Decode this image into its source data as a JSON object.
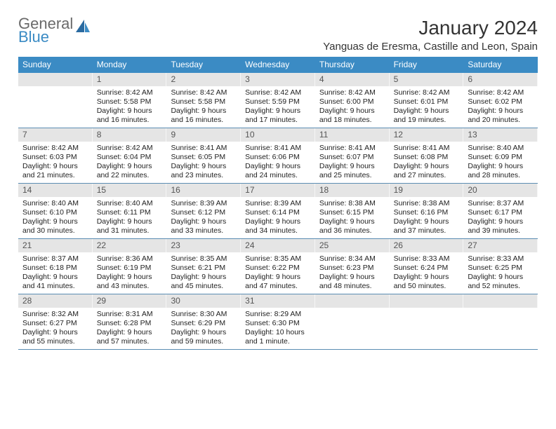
{
  "logo": {
    "line1": "General",
    "line2": "Blue"
  },
  "title": "January 2024",
  "location": "Yanguas de Eresma, Castille and Leon, Spain",
  "colors": {
    "header_bg": "#3b8bc4",
    "header_text": "#ffffff",
    "daynum_bg": "#e5e5e5",
    "border": "#5b8db3",
    "logo_gray": "#6a6a6a",
    "logo_blue": "#3b8bc4"
  },
  "weekdays": [
    "Sunday",
    "Monday",
    "Tuesday",
    "Wednesday",
    "Thursday",
    "Friday",
    "Saturday"
  ],
  "weeks": [
    [
      {
        "num": "",
        "lines": []
      },
      {
        "num": "1",
        "lines": [
          "Sunrise: 8:42 AM",
          "Sunset: 5:58 PM",
          "Daylight: 9 hours",
          "and 16 minutes."
        ]
      },
      {
        "num": "2",
        "lines": [
          "Sunrise: 8:42 AM",
          "Sunset: 5:58 PM",
          "Daylight: 9 hours",
          "and 16 minutes."
        ]
      },
      {
        "num": "3",
        "lines": [
          "Sunrise: 8:42 AM",
          "Sunset: 5:59 PM",
          "Daylight: 9 hours",
          "and 17 minutes."
        ]
      },
      {
        "num": "4",
        "lines": [
          "Sunrise: 8:42 AM",
          "Sunset: 6:00 PM",
          "Daylight: 9 hours",
          "and 18 minutes."
        ]
      },
      {
        "num": "5",
        "lines": [
          "Sunrise: 8:42 AM",
          "Sunset: 6:01 PM",
          "Daylight: 9 hours",
          "and 19 minutes."
        ]
      },
      {
        "num": "6",
        "lines": [
          "Sunrise: 8:42 AM",
          "Sunset: 6:02 PM",
          "Daylight: 9 hours",
          "and 20 minutes."
        ]
      }
    ],
    [
      {
        "num": "7",
        "lines": [
          "Sunrise: 8:42 AM",
          "Sunset: 6:03 PM",
          "Daylight: 9 hours",
          "and 21 minutes."
        ]
      },
      {
        "num": "8",
        "lines": [
          "Sunrise: 8:42 AM",
          "Sunset: 6:04 PM",
          "Daylight: 9 hours",
          "and 22 minutes."
        ]
      },
      {
        "num": "9",
        "lines": [
          "Sunrise: 8:41 AM",
          "Sunset: 6:05 PM",
          "Daylight: 9 hours",
          "and 23 minutes."
        ]
      },
      {
        "num": "10",
        "lines": [
          "Sunrise: 8:41 AM",
          "Sunset: 6:06 PM",
          "Daylight: 9 hours",
          "and 24 minutes."
        ]
      },
      {
        "num": "11",
        "lines": [
          "Sunrise: 8:41 AM",
          "Sunset: 6:07 PM",
          "Daylight: 9 hours",
          "and 25 minutes."
        ]
      },
      {
        "num": "12",
        "lines": [
          "Sunrise: 8:41 AM",
          "Sunset: 6:08 PM",
          "Daylight: 9 hours",
          "and 27 minutes."
        ]
      },
      {
        "num": "13",
        "lines": [
          "Sunrise: 8:40 AM",
          "Sunset: 6:09 PM",
          "Daylight: 9 hours",
          "and 28 minutes."
        ]
      }
    ],
    [
      {
        "num": "14",
        "lines": [
          "Sunrise: 8:40 AM",
          "Sunset: 6:10 PM",
          "Daylight: 9 hours",
          "and 30 minutes."
        ]
      },
      {
        "num": "15",
        "lines": [
          "Sunrise: 8:40 AM",
          "Sunset: 6:11 PM",
          "Daylight: 9 hours",
          "and 31 minutes."
        ]
      },
      {
        "num": "16",
        "lines": [
          "Sunrise: 8:39 AM",
          "Sunset: 6:12 PM",
          "Daylight: 9 hours",
          "and 33 minutes."
        ]
      },
      {
        "num": "17",
        "lines": [
          "Sunrise: 8:39 AM",
          "Sunset: 6:14 PM",
          "Daylight: 9 hours",
          "and 34 minutes."
        ]
      },
      {
        "num": "18",
        "lines": [
          "Sunrise: 8:38 AM",
          "Sunset: 6:15 PM",
          "Daylight: 9 hours",
          "and 36 minutes."
        ]
      },
      {
        "num": "19",
        "lines": [
          "Sunrise: 8:38 AM",
          "Sunset: 6:16 PM",
          "Daylight: 9 hours",
          "and 37 minutes."
        ]
      },
      {
        "num": "20",
        "lines": [
          "Sunrise: 8:37 AM",
          "Sunset: 6:17 PM",
          "Daylight: 9 hours",
          "and 39 minutes."
        ]
      }
    ],
    [
      {
        "num": "21",
        "lines": [
          "Sunrise: 8:37 AM",
          "Sunset: 6:18 PM",
          "Daylight: 9 hours",
          "and 41 minutes."
        ]
      },
      {
        "num": "22",
        "lines": [
          "Sunrise: 8:36 AM",
          "Sunset: 6:19 PM",
          "Daylight: 9 hours",
          "and 43 minutes."
        ]
      },
      {
        "num": "23",
        "lines": [
          "Sunrise: 8:35 AM",
          "Sunset: 6:21 PM",
          "Daylight: 9 hours",
          "and 45 minutes."
        ]
      },
      {
        "num": "24",
        "lines": [
          "Sunrise: 8:35 AM",
          "Sunset: 6:22 PM",
          "Daylight: 9 hours",
          "and 47 minutes."
        ]
      },
      {
        "num": "25",
        "lines": [
          "Sunrise: 8:34 AM",
          "Sunset: 6:23 PM",
          "Daylight: 9 hours",
          "and 48 minutes."
        ]
      },
      {
        "num": "26",
        "lines": [
          "Sunrise: 8:33 AM",
          "Sunset: 6:24 PM",
          "Daylight: 9 hours",
          "and 50 minutes."
        ]
      },
      {
        "num": "27",
        "lines": [
          "Sunrise: 8:33 AM",
          "Sunset: 6:25 PM",
          "Daylight: 9 hours",
          "and 52 minutes."
        ]
      }
    ],
    [
      {
        "num": "28",
        "lines": [
          "Sunrise: 8:32 AM",
          "Sunset: 6:27 PM",
          "Daylight: 9 hours",
          "and 55 minutes."
        ]
      },
      {
        "num": "29",
        "lines": [
          "Sunrise: 8:31 AM",
          "Sunset: 6:28 PM",
          "Daylight: 9 hours",
          "and 57 minutes."
        ]
      },
      {
        "num": "30",
        "lines": [
          "Sunrise: 8:30 AM",
          "Sunset: 6:29 PM",
          "Daylight: 9 hours",
          "and 59 minutes."
        ]
      },
      {
        "num": "31",
        "lines": [
          "Sunrise: 8:29 AM",
          "Sunset: 6:30 PM",
          "Daylight: 10 hours",
          "and 1 minute."
        ]
      },
      {
        "num": "",
        "lines": []
      },
      {
        "num": "",
        "lines": []
      },
      {
        "num": "",
        "lines": []
      }
    ]
  ]
}
